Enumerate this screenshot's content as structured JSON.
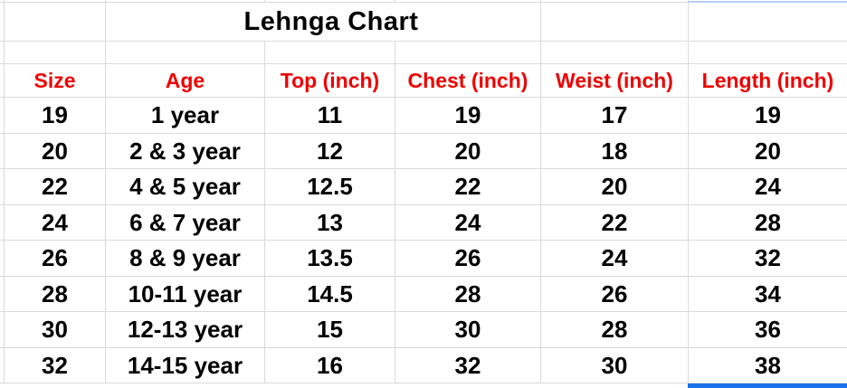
{
  "title": "Lehnga Chart",
  "table": {
    "headers": [
      "Size",
      "Age",
      "Top (inch)",
      "Chest (inch)",
      "Weist (inch)",
      "Length (inch)"
    ],
    "rows": [
      [
        "19",
        "1 year",
        "11",
        "19",
        "17",
        "19"
      ],
      [
        "20",
        "2 & 3 year",
        "12",
        "20",
        "18",
        "20"
      ],
      [
        "22",
        "4 & 5 year",
        "12.5",
        "22",
        "20",
        "24"
      ],
      [
        "24",
        "6 & 7 year",
        "13",
        "24",
        "22",
        "28"
      ],
      [
        "26",
        "8 & 9 year",
        "13.5",
        "26",
        "24",
        "32"
      ],
      [
        "28",
        "10-11 year",
        "14.5",
        "28",
        "26",
        "34"
      ],
      [
        "30",
        "12-13 year",
        "15",
        "30",
        "28",
        "36"
      ],
      [
        "32",
        "14-15 year",
        "16",
        "32",
        "30",
        "38"
      ]
    ]
  },
  "colors": {
    "header_text": "#ee0000",
    "body_text": "#000000",
    "grid_line": "#d9dadd",
    "selection_border": "#1a73e8",
    "selection_border_light": "#b6cff2"
  }
}
